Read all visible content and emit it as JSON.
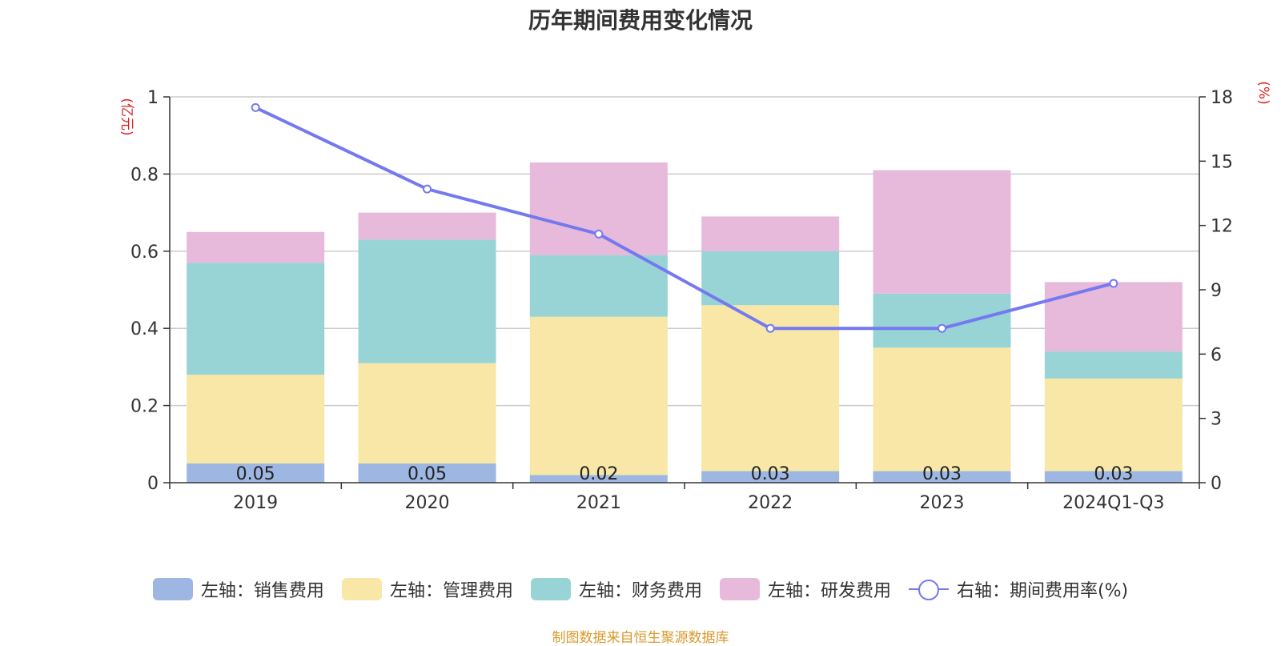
{
  "chart_data": {
    "type": "bar",
    "title": "历年期间费用变化情况",
    "categories": [
      "2019",
      "2020",
      "2021",
      "2022",
      "2023",
      "2024Q1-Q3"
    ],
    "series": [
      {
        "name": "左轴：销售费用",
        "axis": "left",
        "color": "#9db6e2",
        "values": [
          0.05,
          0.05,
          0.02,
          0.03,
          0.03,
          0.03
        ]
      },
      {
        "name": "左轴：管理费用",
        "axis": "left",
        "color": "#f8e7a6",
        "values": [
          0.23,
          0.26,
          0.41,
          0.43,
          0.32,
          0.24
        ]
      },
      {
        "name": "左轴：财务费用",
        "axis": "left",
        "color": "#98d4d5",
        "values": [
          0.29,
          0.32,
          0.16,
          0.14,
          0.14,
          0.07
        ]
      },
      {
        "name": "左轴：研发费用",
        "axis": "left",
        "color": "#e7b9da",
        "values": [
          0.08,
          0.07,
          0.24,
          0.09,
          0.32,
          0.18
        ]
      },
      {
        "name": "右轴：期间费用率(%)",
        "axis": "right",
        "type": "line",
        "color": "#7579ef",
        "values": [
          17.5,
          13.7,
          11.6,
          7.2,
          7.2,
          9.3
        ]
      }
    ],
    "data_labels": [
      "0.05",
      "0.05",
      "0.02",
      "0.03",
      "0.03",
      "0.03"
    ],
    "y_left": {
      "label": "(亿元)",
      "ylim": [
        0,
        1
      ],
      "ticks": [
        "0",
        "0.2",
        "0.4",
        "0.6",
        "0.8",
        "1"
      ]
    },
    "y_right": {
      "label": "(%)",
      "ylim": [
        0,
        18
      ],
      "ticks": [
        "0",
        "3",
        "6",
        "9",
        "12",
        "15",
        "18"
      ]
    },
    "grid": true,
    "legend": "bottom",
    "source": "制图数据来自恒生聚源数据库"
  }
}
